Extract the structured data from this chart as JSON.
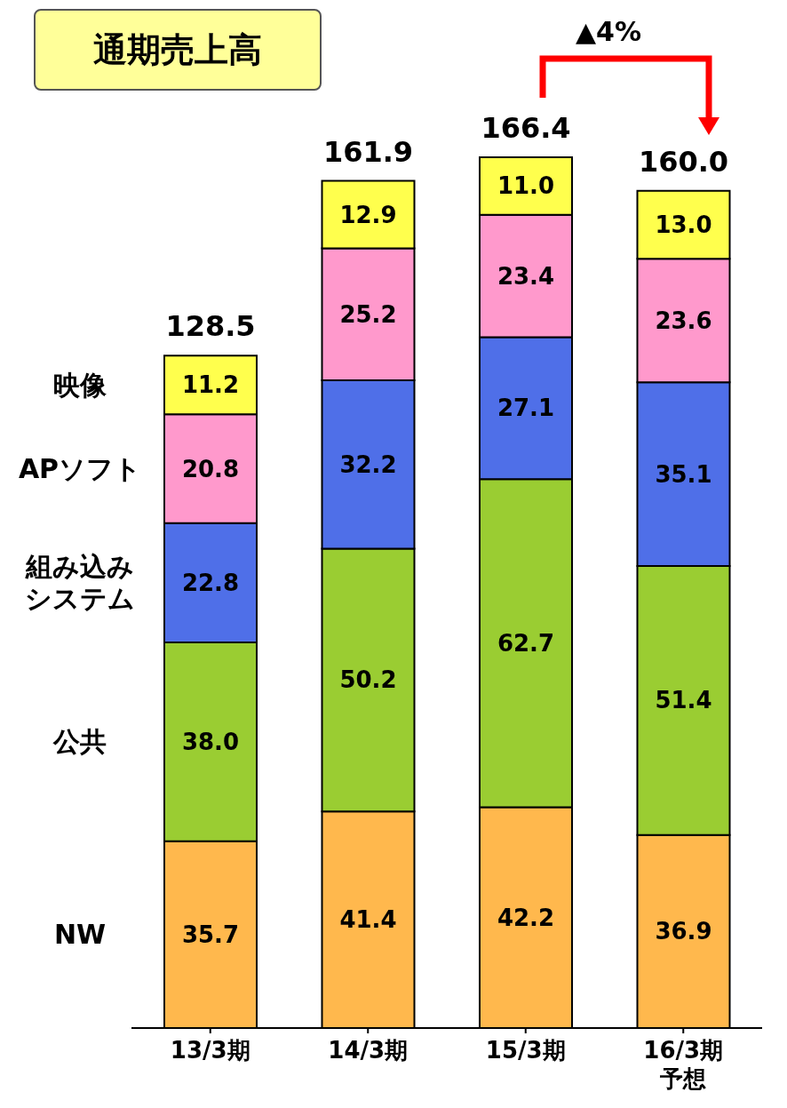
{
  "chart_data": {
    "type": "bar",
    "title": "通期売上高",
    "stacked": true,
    "legend": "left",
    "categories": [
      "13/3期",
      "14/3期",
      "15/3期",
      "16/3期予想"
    ],
    "series": [
      {
        "name": "NW",
        "color": "#ffb84d",
        "values": [
          35.7,
          41.4,
          42.2,
          36.9
        ],
        "value_labels": [
          "35.7",
          "41.4",
          "42.2",
          "36.9"
        ]
      },
      {
        "name": "公共",
        "color": "#9acd32",
        "values": [
          38.0,
          50.2,
          62.7,
          51.4
        ],
        "value_labels": [
          "38.0",
          "50.2",
          "62.7",
          "51.4"
        ]
      },
      {
        "name": "組み込みシステム",
        "color": "#4f6fe8",
        "values": [
          22.8,
          32.2,
          27.1,
          35.1
        ],
        "value_labels": [
          "22.8",
          "32.2",
          "27.1",
          "35.1"
        ]
      },
      {
        "name": "APソフト",
        "color": "#ff99cc",
        "values": [
          20.8,
          25.2,
          23.4,
          23.6
        ],
        "value_labels": [
          "20.8",
          "25.2",
          "23.4",
          "23.6"
        ]
      },
      {
        "name": "映像",
        "color": "#ffff4d",
        "values": [
          11.2,
          12.9,
          11.0,
          13.0
        ],
        "value_labels": [
          "11.2",
          "12.9",
          "11.0",
          "13.0"
        ]
      }
    ],
    "totals": [
      "128.5",
      "161.9",
      "166.4",
      "160.0"
    ],
    "annotations": [
      "▲4%"
    ]
  }
}
